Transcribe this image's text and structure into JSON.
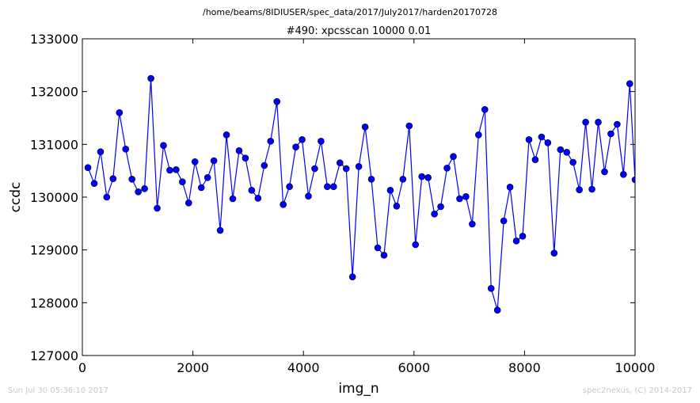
{
  "header": {
    "path": "/home/beams/8IDIUSER/spec_data/2017/July2017/harden20170728"
  },
  "footer": {
    "timestamp": "Sun Jul 30 05:36:10 2017",
    "credit": "spec2nexus, (C) 2014-2017"
  },
  "chart_data": {
    "type": "line",
    "title": "#490: xpcsscan 10000 0.01",
    "xlabel": "img_n",
    "ylabel": "ccdc",
    "xlim": [
      0,
      10000
    ],
    "ylim": [
      127000,
      133000
    ],
    "xticks": [
      0,
      2000,
      4000,
      6000,
      8000,
      10000
    ],
    "yticks": [
      127000,
      128000,
      129000,
      130000,
      131000,
      132000,
      133000
    ],
    "grid": false,
    "marker": "circle",
    "color": "#0000ff",
    "series": [
      {
        "x": [
          101,
          215,
          329,
          442,
          556,
          670,
          784,
          898,
          1012,
          1126,
          1240,
          1354,
          1468,
          1582,
          1696,
          1810,
          1924,
          2038,
          2152,
          2266,
          2380,
          2494,
          2608,
          2722,
          2836,
          2950,
          3064,
          3178,
          3292,
          3406,
          3520,
          3634,
          3748,
          3862,
          3976,
          4090,
          4204,
          4318,
          4432,
          4546,
          4660,
          4774,
          4888,
          5002,
          5116,
          5230,
          5344,
          5458,
          5572,
          5686,
          5800,
          5914,
          6028,
          6142,
          6256,
          6370,
          6484,
          6598,
          6712,
          6826,
          6940,
          7054,
          7168,
          7282,
          7396,
          7510,
          7624,
          7738,
          7852,
          7966,
          8080,
          8194,
          8308,
          8422,
          8536,
          8650,
          8764,
          8878,
          8992,
          9106,
          9220,
          9334,
          9448,
          9562,
          9676,
          9790,
          9904,
          10000
        ],
        "y": [
          130560,
          130260,
          130860,
          130000,
          130350,
          131600,
          130910,
          130340,
          130100,
          130160,
          132250,
          129790,
          130980,
          130510,
          130520,
          130290,
          129890,
          130670,
          130180,
          130370,
          130690,
          129370,
          131180,
          129970,
          130880,
          130740,
          130130,
          129980,
          130600,
          131060,
          131810,
          129860,
          130200,
          130950,
          131090,
          130020,
          130540,
          131060,
          130200,
          130200,
          130650,
          130540,
          128490,
          130580,
          131330,
          130340,
          129040,
          128900,
          130130,
          129830,
          130340,
          131350,
          129100,
          130390,
          130370,
          129680,
          129820,
          130550,
          130770,
          129970,
          130010,
          129490,
          131180,
          131660,
          128270,
          127860,
          129550,
          130190,
          129170,
          129260,
          131090,
          130710,
          131140,
          131030,
          128940,
          130900,
          130850,
          130660,
          130140,
          131420,
          130150,
          131420,
          130480,
          131200,
          131380,
          130430,
          132150,
          130330
        ]
      }
    ]
  }
}
